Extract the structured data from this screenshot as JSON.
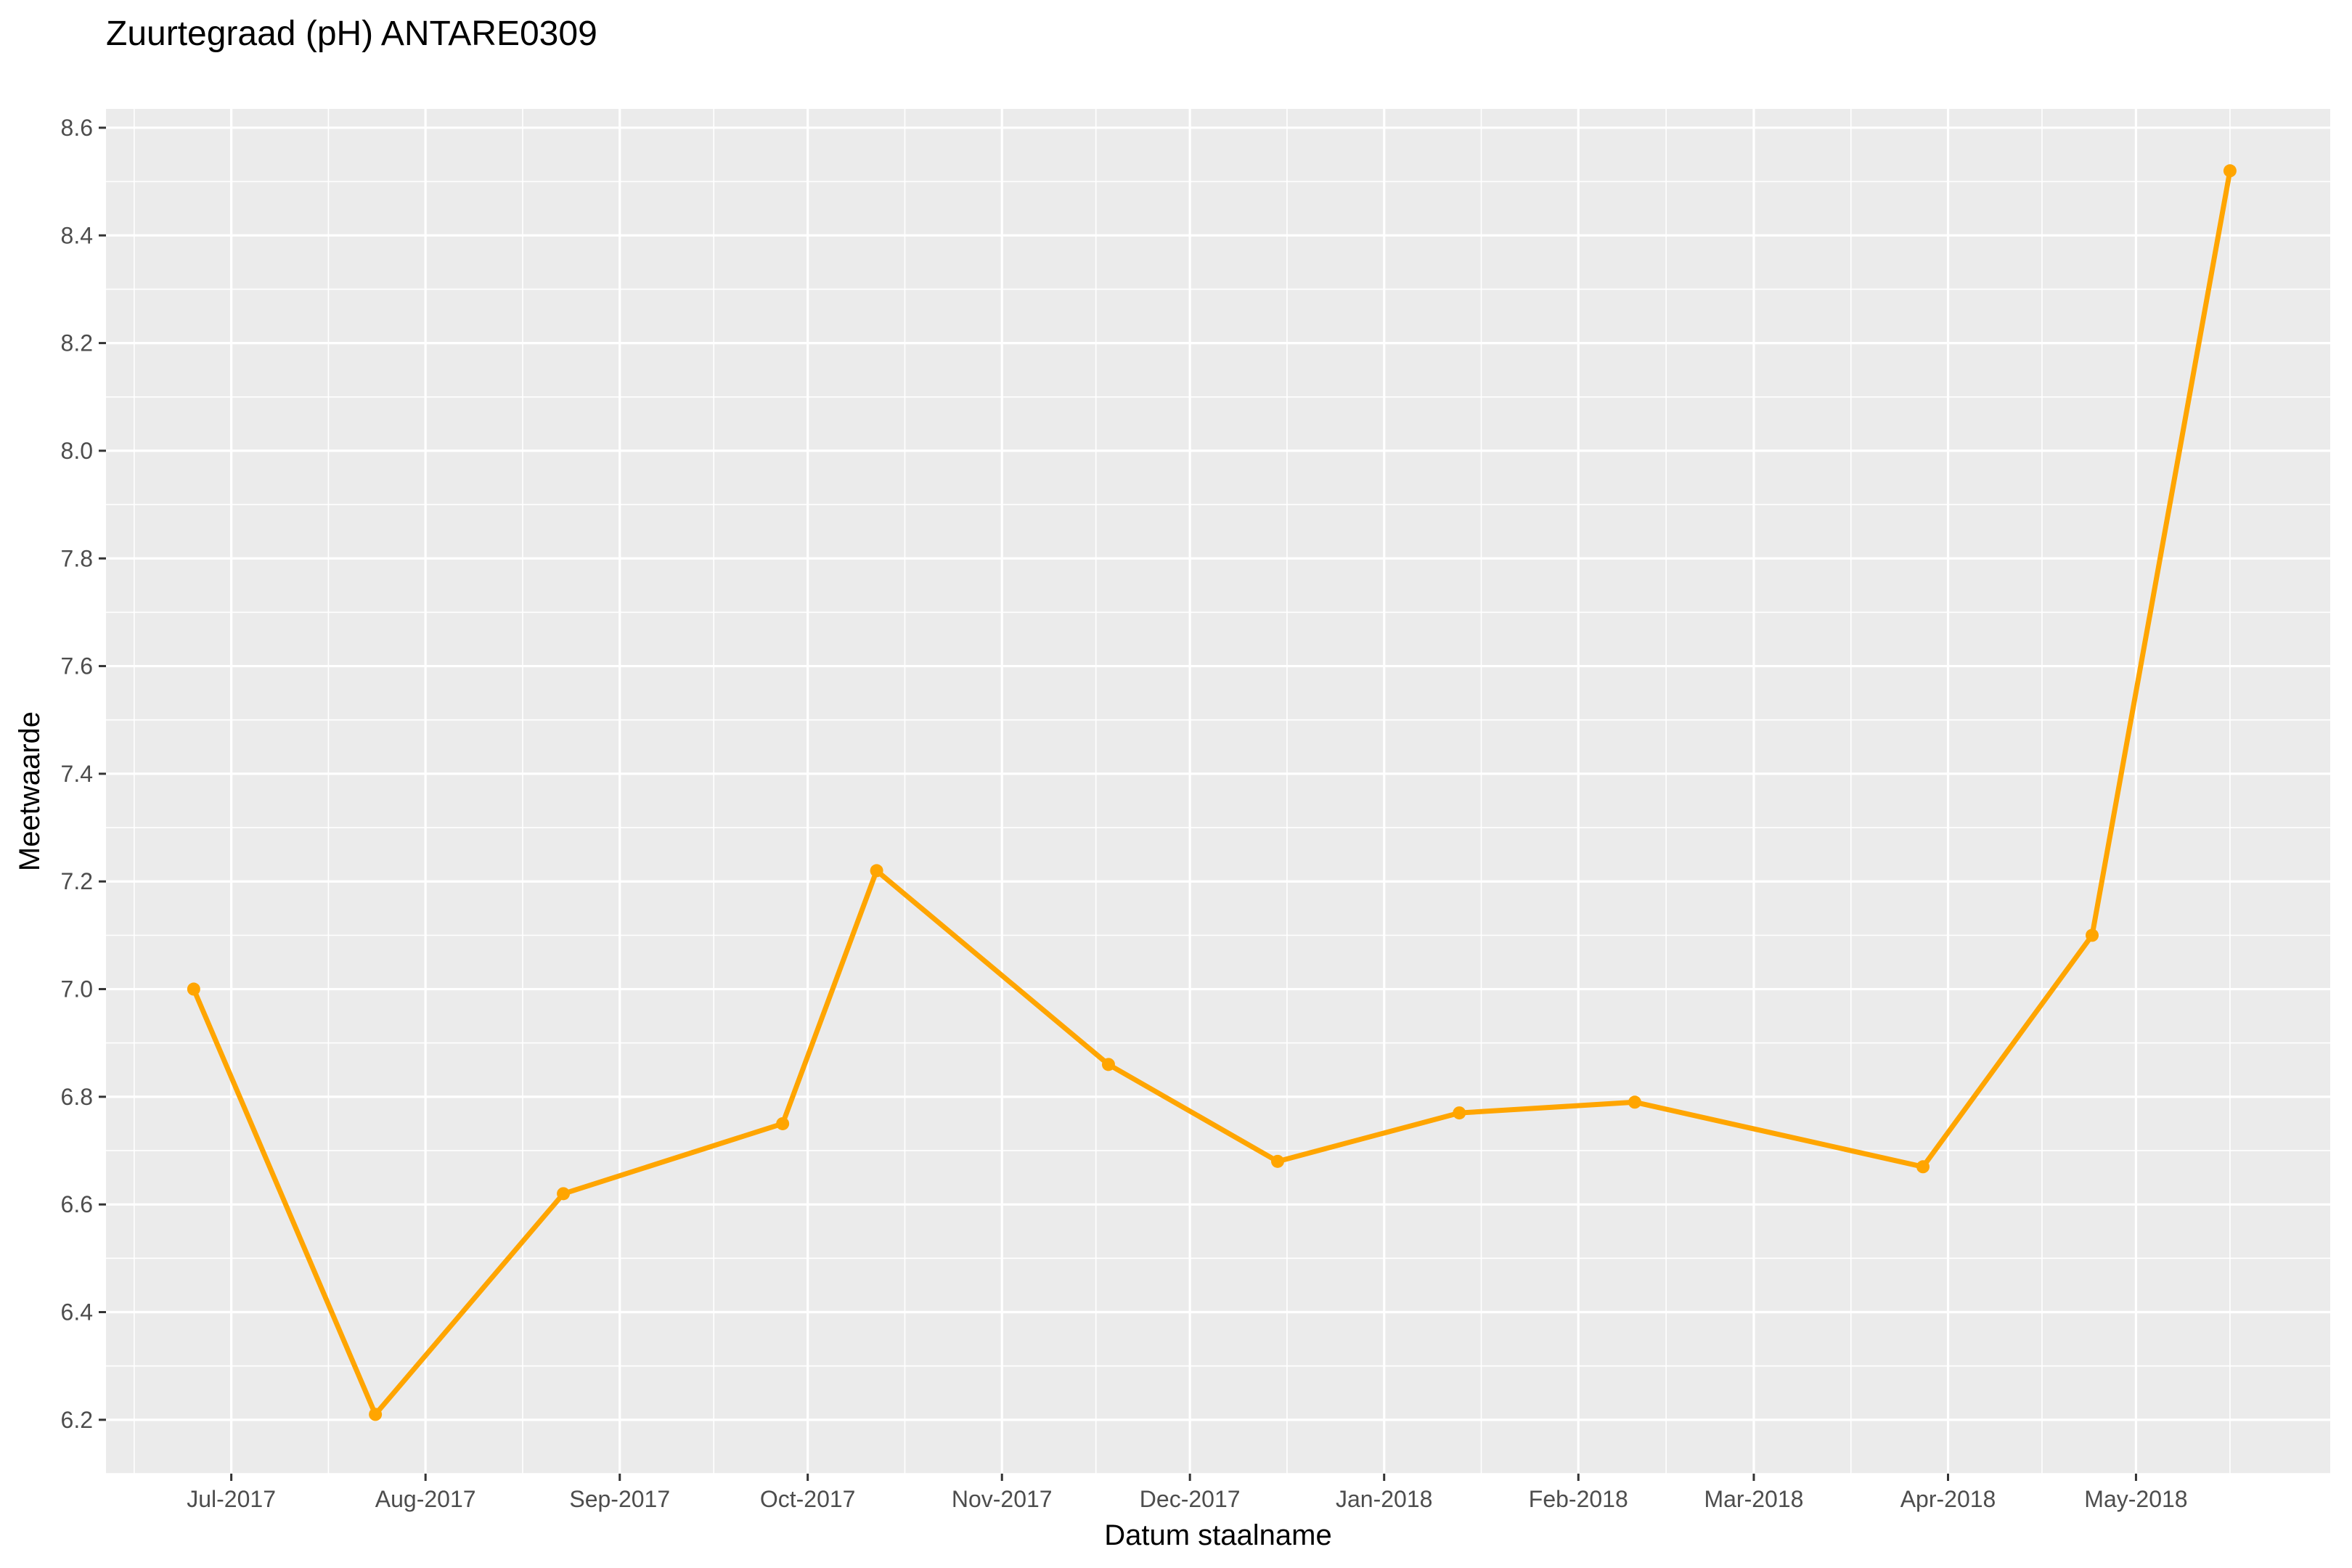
{
  "colors": {
    "panel_background": "#EBEBEB",
    "grid_major": "#FFFFFF",
    "series": "#FFA500",
    "tick_text": "#4D4D4D",
    "tick_mark": "#333333"
  },
  "chart_data": {
    "type": "line",
    "title": "Zuurtegraad (pH) ANTARE0309",
    "xlabel": "Datum staalname",
    "ylabel": "Meetwaarde",
    "x_type": "date",
    "xlim": [
      "2017-06-11",
      "2018-06-01"
    ],
    "ylim": [
      6.1,
      8.635
    ],
    "y_ticks": [
      6.2,
      6.4,
      6.6,
      6.8,
      7.0,
      7.2,
      7.4,
      7.6,
      7.8,
      8.0,
      8.2,
      8.4,
      8.6
    ],
    "y_tick_labels": [
      "6.2",
      "6.4",
      "6.6",
      "6.8",
      "7.0",
      "7.2",
      "7.4",
      "7.6",
      "7.8",
      "8.0",
      "8.2",
      "8.4",
      "8.6"
    ],
    "x_ticks": [
      "2017-07-01",
      "2017-08-01",
      "2017-09-01",
      "2017-10-01",
      "2017-11-01",
      "2017-12-01",
      "2018-01-01",
      "2018-02-01",
      "2018-03-01",
      "2018-04-01",
      "2018-05-01"
    ],
    "x_tick_labels": [
      "Jul-2017",
      "Aug-2017",
      "Sep-2017",
      "Oct-2017",
      "Nov-2017",
      "Dec-2017",
      "Jan-2018",
      "Feb-2018",
      "Mar-2018",
      "Apr-2018",
      "May-2018"
    ],
    "grid": true,
    "legend": "none",
    "series": [
      {
        "x": [
          "2017-06-25",
          "2017-07-24",
          "2017-08-23",
          "2017-09-27",
          "2017-10-12",
          "2017-11-18",
          "2017-12-15",
          "2018-01-13",
          "2018-02-10",
          "2018-03-28",
          "2018-04-24",
          "2018-05-16"
        ],
        "values": [
          7.0,
          6.21,
          6.62,
          6.75,
          7.22,
          6.86,
          6.68,
          6.77,
          6.79,
          6.67,
          7.1,
          8.52
        ]
      }
    ]
  }
}
